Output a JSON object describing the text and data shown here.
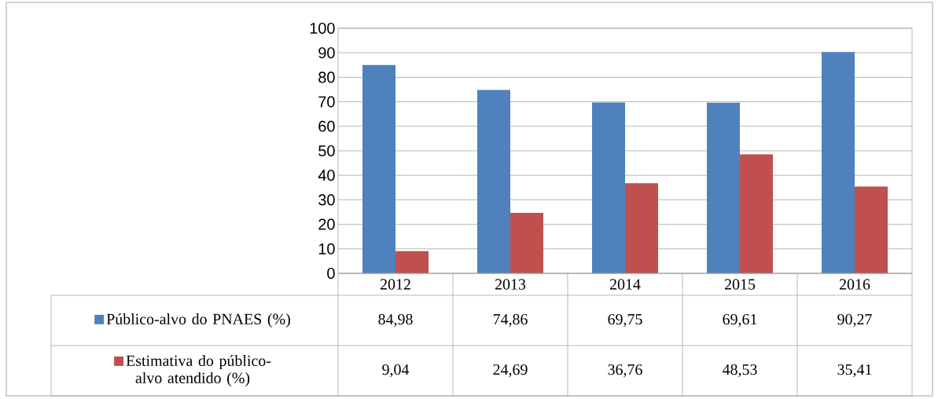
{
  "chart_data": {
    "type": "bar",
    "categories": [
      "2012",
      "2013",
      "2014",
      "2015",
      "2016"
    ],
    "series": [
      {
        "name": "Público-alvo do PNAES (%)",
        "color": "#4f81bd",
        "values": [
          84.98,
          74.86,
          69.75,
          69.61,
          90.27
        ],
        "value_labels": [
          "84,98",
          "74,86",
          "69,75",
          "69,61",
          "90,27"
        ]
      },
      {
        "name": "Estimativa do público-alvo atendido (%)",
        "color": "#c0504d",
        "values": [
          9.04,
          24.69,
          36.76,
          48.53,
          35.41
        ],
        "value_labels": [
          "9,04",
          "24,69",
          "36,76",
          "48,53",
          "35,41"
        ]
      }
    ],
    "ylim": [
      0,
      100
    ],
    "yticks": [
      0,
      10,
      20,
      30,
      40,
      50,
      60,
      70,
      80,
      90,
      100
    ],
    "grid": "y",
    "legend": "bottom"
  }
}
